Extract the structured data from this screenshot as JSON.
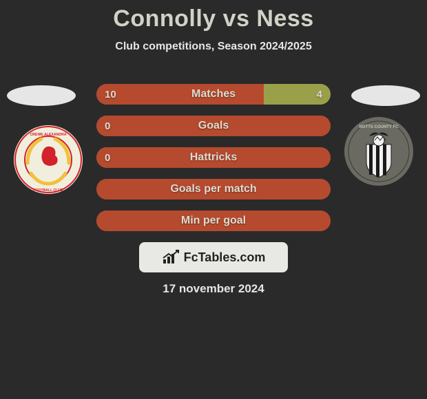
{
  "title": "Connolly vs Ness",
  "subtitle": "Club competitions, Season 2024/2025",
  "date_text": "17 november 2024",
  "footer_brand": "FcTables.com",
  "colors": {
    "bg": "#2a2a2a",
    "title": "#d0d3c5",
    "subtitle": "#e6e6e6",
    "bar_empty": "#6b6b6b",
    "left_fill": "#b64a2e",
    "right_fill": "#9aa04a",
    "bar_text": "#dcdcd0",
    "ellipse": "#e6e6e6",
    "footer_bg": "#e8e8e4"
  },
  "left_club": {
    "name": "Crewe Alexandra",
    "badge_bg": "#f2eedd",
    "badge_ring": "#d2222a",
    "badge_accent": "#f0c23a"
  },
  "right_club": {
    "name": "Notts County",
    "badge_bg": "#6a6a62",
    "badge_dark": "#1a1a1a",
    "badge_light": "#f0f0f0"
  },
  "bars": [
    {
      "label": "Matches",
      "left_val": "10",
      "right_val": "4",
      "left_pct": 71.4,
      "right_pct": 28.6
    },
    {
      "label": "Goals",
      "left_val": "0",
      "right_val": "",
      "left_pct": 100,
      "right_pct": 0
    },
    {
      "label": "Hattricks",
      "left_val": "0",
      "right_val": "",
      "left_pct": 100,
      "right_pct": 0
    },
    {
      "label": "Goals per match",
      "left_val": "",
      "right_val": "",
      "left_pct": 100,
      "right_pct": 0
    },
    {
      "label": "Min per goal",
      "left_val": "",
      "right_val": "",
      "left_pct": 100,
      "right_pct": 0
    }
  ]
}
